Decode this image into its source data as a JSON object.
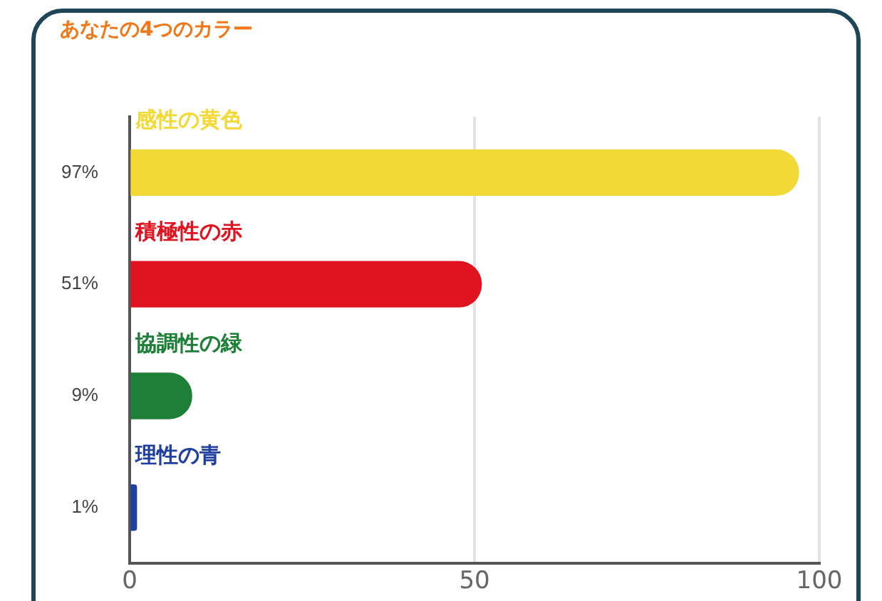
{
  "chart_data": {
    "type": "bar",
    "orientation": "horizontal",
    "title": "あなたの4つのカラー",
    "categories": [
      "感性の黄色",
      "積極性の赤",
      "協調性の緑",
      "理性の青"
    ],
    "values": [
      97,
      51,
      9,
      1
    ],
    "colors": [
      "#f2d935",
      "#e01420",
      "#1e8038",
      "#2040a0"
    ],
    "value_labels": [
      "97%",
      "51%",
      "9%",
      "1%"
    ],
    "xlim": [
      0,
      100
    ],
    "xticks": [
      0,
      50,
      100
    ],
    "grid": "x",
    "tick_labels": "x",
    "legend": false
  }
}
